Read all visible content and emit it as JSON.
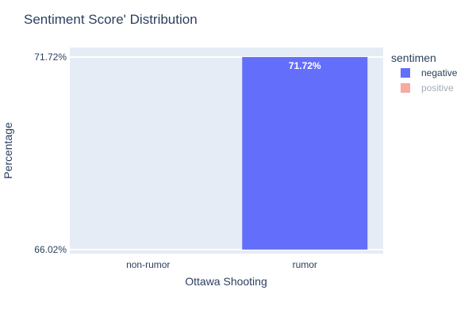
{
  "chart_data": {
    "type": "bar",
    "title": "Sentiment Score' Distribution",
    "xlabel": "Ottawa Shooting",
    "ylabel": "Percentage",
    "categories": [
      "non-rumor",
      "rumor"
    ],
    "ylim": [
      65.9,
      72.0
    ],
    "yticks": [
      {
        "value": 66.02,
        "label": "66.02%"
      },
      {
        "value": 71.72,
        "label": "71.72%"
      }
    ],
    "series": [
      {
        "name": "negative",
        "color": "#636efa",
        "values": [
          null,
          71.72
        ],
        "labels": [
          null,
          "71.72%"
        ],
        "visible": true
      },
      {
        "name": "positive",
        "color": "#ef553b",
        "values": [
          null,
          null
        ],
        "labels": [
          null,
          null
        ],
        "visible": false
      }
    ],
    "bar_base": 66.02,
    "legend": {
      "title": "sentimen",
      "position": "top-right"
    },
    "grid": true,
    "background": "#e5ecf6"
  }
}
